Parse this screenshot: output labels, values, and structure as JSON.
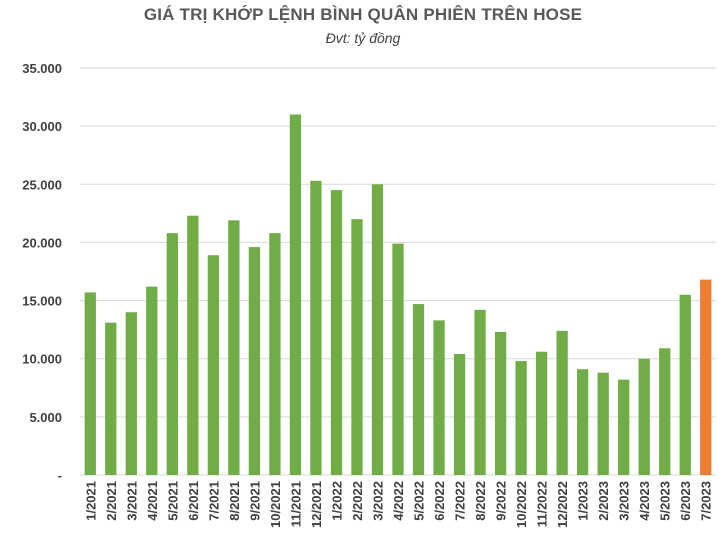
{
  "chart_data": {
    "type": "bar",
    "title": "GIÁ TRỊ KHỚP LỆNH BÌNH QUÂN PHIÊN TRÊN HOSE",
    "subtitle": "Đvt: tỷ đồng",
    "xlabel": "",
    "ylabel": "",
    "ylim": [
      0,
      35000
    ],
    "yticks": [
      {
        "value": 0,
        "label": "-"
      },
      {
        "value": 5000,
        "label": "5.000"
      },
      {
        "value": 10000,
        "label": "10.000"
      },
      {
        "value": 15000,
        "label": "15.000"
      },
      {
        "value": 20000,
        "label": "20.000"
      },
      {
        "value": 25000,
        "label": "25.000"
      },
      {
        "value": 30000,
        "label": "30.000"
      },
      {
        "value": 35000,
        "label": "35.000"
      }
    ],
    "grid": true,
    "categories": [
      "1/2021",
      "2/2021",
      "3/2021",
      "4/2021",
      "5/2021",
      "6/2021",
      "7/2021",
      "8/2021",
      "9/2021",
      "10/2021",
      "11/2021",
      "12/2021",
      "1/2022",
      "2/2022",
      "3/2022",
      "4/2022",
      "5/2022",
      "6/2022",
      "7/2022",
      "8/2022",
      "9/2022",
      "10/2022",
      "11/2022",
      "12/2022",
      "1/2023",
      "2/2023",
      "3/2023",
      "4/2023",
      "5/2023",
      "6/2023",
      "7/2023"
    ],
    "values": [
      15700,
      13100,
      14000,
      16200,
      20800,
      22300,
      18900,
      21900,
      19600,
      20800,
      31000,
      25300,
      24500,
      22000,
      25000,
      19900,
      14700,
      13300,
      10400,
      14200,
      12300,
      9800,
      10600,
      12400,
      9100,
      8800,
      8200,
      10000,
      10900,
      15500,
      16800
    ],
    "colors": {
      "default": "#70ad47",
      "highlight": "#ed7d31"
    },
    "highlight_index": 30
  }
}
